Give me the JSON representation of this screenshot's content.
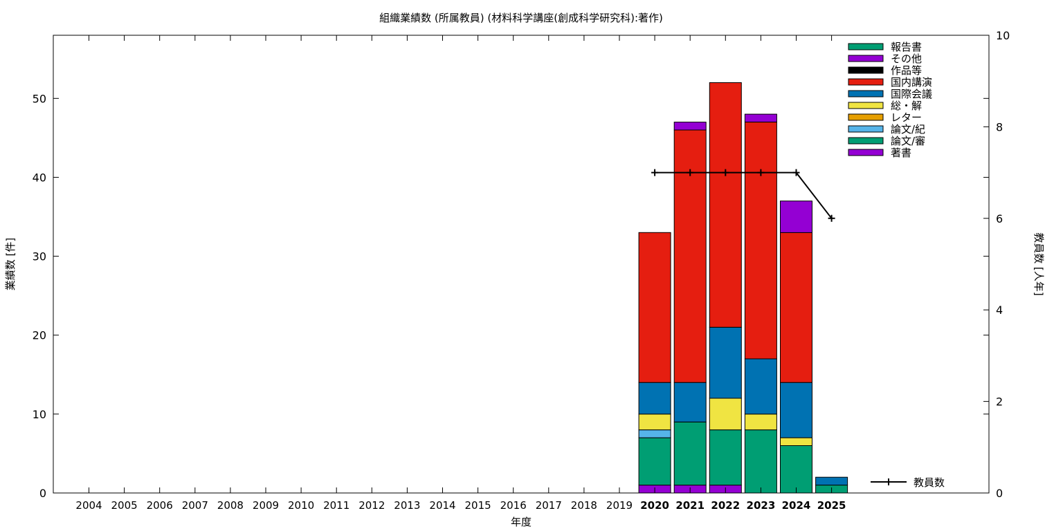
{
  "chart_data": {
    "type": "bar",
    "stacked": true,
    "title": "組織業績数 (所属教員) (材料科学講座(創成科学研究科):著作)",
    "xlabel": "年度",
    "ylabel": "業績数 [件]",
    "y2label": "教員数 [人年]",
    "ylim": [
      0,
      58
    ],
    "y2lim": [
      0,
      10
    ],
    "yticks": [
      0,
      10,
      20,
      30,
      40,
      50
    ],
    "y2ticks": [
      0,
      2,
      4,
      6,
      8,
      10
    ],
    "grid": false,
    "legend_position": "top-right",
    "categories": [
      "2004",
      "2005",
      "2006",
      "2007",
      "2008",
      "2009",
      "2010",
      "2011",
      "2012",
      "2013",
      "2014",
      "2015",
      "2016",
      "2017",
      "2018",
      "2019",
      "2020",
      "2021",
      "2022",
      "2023",
      "2024",
      "2025"
    ],
    "bold_categories": [
      "2020",
      "2021",
      "2022",
      "2023",
      "2024",
      "2025"
    ],
    "series": [
      {
        "name": "著書",
        "color": "#9400d3",
        "values": [
          0,
          0,
          0,
          0,
          0,
          0,
          0,
          0,
          0,
          0,
          0,
          0,
          0,
          0,
          0,
          0,
          1,
          1,
          1,
          0,
          0,
          0
        ]
      },
      {
        "name": "論文/審",
        "color": "#009e73",
        "values": [
          0,
          0,
          0,
          0,
          0,
          0,
          0,
          0,
          0,
          0,
          0,
          0,
          0,
          0,
          0,
          0,
          6,
          8,
          7,
          8,
          6,
          1
        ]
      },
      {
        "name": "論文/紀",
        "color": "#56b4e9",
        "values": [
          0,
          0,
          0,
          0,
          0,
          0,
          0,
          0,
          0,
          0,
          0,
          0,
          0,
          0,
          0,
          0,
          1,
          0,
          0,
          0,
          0,
          0
        ]
      },
      {
        "name": "レター",
        "color": "#e69f00",
        "values": [
          0,
          0,
          0,
          0,
          0,
          0,
          0,
          0,
          0,
          0,
          0,
          0,
          0,
          0,
          0,
          0,
          0,
          0,
          0,
          0,
          0,
          0
        ]
      },
      {
        "name": "総・解",
        "color": "#f0e442",
        "values": [
          0,
          0,
          0,
          0,
          0,
          0,
          0,
          0,
          0,
          0,
          0,
          0,
          0,
          0,
          0,
          0,
          2,
          0,
          4,
          2,
          1,
          0
        ]
      },
      {
        "name": "国際会議",
        "color": "#0072b2",
        "values": [
          0,
          0,
          0,
          0,
          0,
          0,
          0,
          0,
          0,
          0,
          0,
          0,
          0,
          0,
          0,
          0,
          4,
          5,
          9,
          7,
          7,
          1
        ]
      },
      {
        "name": "国内講演",
        "color": "#e51e10",
        "values": [
          0,
          0,
          0,
          0,
          0,
          0,
          0,
          0,
          0,
          0,
          0,
          0,
          0,
          0,
          0,
          0,
          19,
          32,
          31,
          30,
          19,
          0
        ]
      },
      {
        "name": "作品等",
        "color": "#000000",
        "values": [
          0,
          0,
          0,
          0,
          0,
          0,
          0,
          0,
          0,
          0,
          0,
          0,
          0,
          0,
          0,
          0,
          0,
          0,
          0,
          0,
          0,
          0
        ]
      },
      {
        "name": "その他",
        "color": "#9400d3",
        "values": [
          0,
          0,
          0,
          0,
          0,
          0,
          0,
          0,
          0,
          0,
          0,
          0,
          0,
          0,
          0,
          0,
          0,
          1,
          0,
          1,
          4,
          0
        ]
      },
      {
        "name": "報告書",
        "color": "#009e73",
        "values": [
          0,
          0,
          0,
          0,
          0,
          0,
          0,
          0,
          0,
          0,
          0,
          0,
          0,
          0,
          0,
          0,
          0,
          0,
          0,
          0,
          0,
          0
        ]
      }
    ],
    "line": {
      "name": "教員数",
      "axis": "y2",
      "color": "#000000",
      "x": [
        "2020",
        "2021",
        "2022",
        "2023",
        "2024",
        "2025"
      ],
      "values": [
        7,
        7,
        7,
        7,
        7,
        6
      ]
    }
  }
}
